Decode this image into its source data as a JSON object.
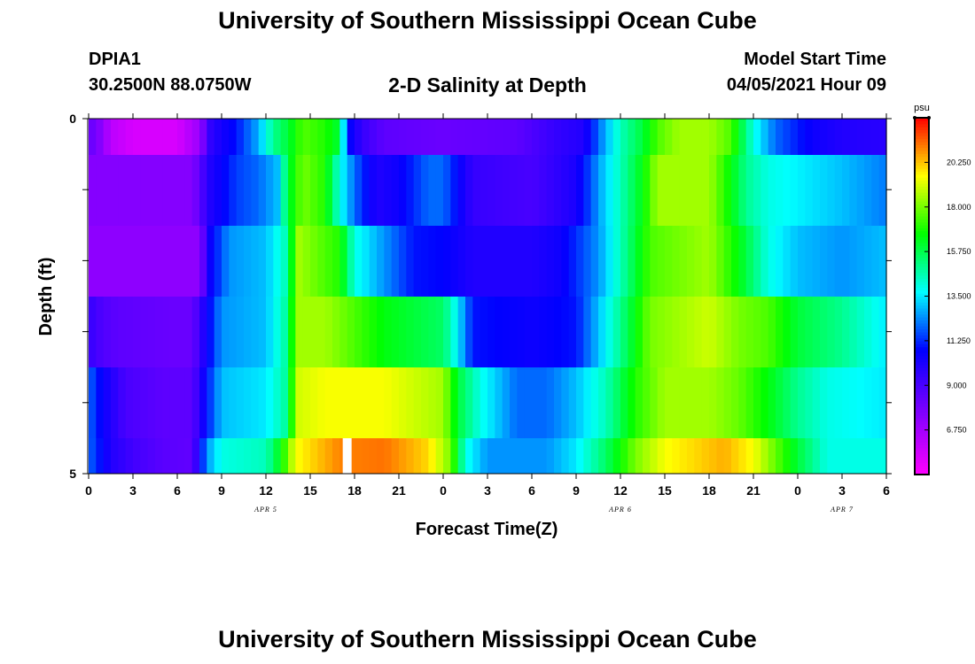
{
  "header": {
    "title": "University of Southern Mississippi Ocean Cube",
    "station_id": "DPIA1",
    "station_coords": "30.2500N  88.0750W",
    "plot_title": "2-D Salinity at Depth",
    "start_label": "Model Start Time",
    "start_value": "04/05/2021 Hour 09"
  },
  "footer": {
    "title": "University of Southern Mississippi Ocean Cube"
  },
  "chart_data": {
    "type": "heatmap",
    "title": "2-D Salinity at Depth",
    "xlabel": "Forecast Time(Z)",
    "ylabel": "Depth (ft)",
    "x_hours": [
      0,
      54
    ],
    "x_ticks": [
      {
        "h": 0,
        "label": "0"
      },
      {
        "h": 3,
        "label": "3"
      },
      {
        "h": 6,
        "label": "6"
      },
      {
        "h": 9,
        "label": "9"
      },
      {
        "h": 12,
        "label": "12"
      },
      {
        "h": 15,
        "label": "15"
      },
      {
        "h": 18,
        "label": "18"
      },
      {
        "h": 21,
        "label": "21"
      },
      {
        "h": 24,
        "label": "0"
      },
      {
        "h": 27,
        "label": "3"
      },
      {
        "h": 30,
        "label": "6"
      },
      {
        "h": 33,
        "label": "9"
      },
      {
        "h": 36,
        "label": "12"
      },
      {
        "h": 39,
        "label": "15"
      },
      {
        "h": 42,
        "label": "18"
      },
      {
        "h": 45,
        "label": "21"
      },
      {
        "h": 48,
        "label": "0"
      },
      {
        "h": 51,
        "label": "3"
      },
      {
        "h": 54,
        "label": "6"
      }
    ],
    "date_labels": [
      {
        "h": 12,
        "label": "APR 5"
      },
      {
        "h": 36,
        "label": "APR 6"
      },
      {
        "h": 51,
        "label": "APR 7"
      }
    ],
    "y_range": [
      0,
      5
    ],
    "y_tick_labels": [
      "0",
      "5"
    ],
    "colorbar": {
      "unit": "psu",
      "min": 4.5,
      "max": 22.5,
      "ticks": [
        "6.750",
        "9.000",
        "11.250",
        "13.500",
        "15.750",
        "18.000",
        "20.250"
      ],
      "tick_values": [
        6.75,
        9.0,
        11.25,
        13.5,
        15.75,
        18.0,
        20.25
      ]
    },
    "missing": [
      {
        "layer": 5,
        "h": [
          17.2,
          17.8
        ]
      }
    ],
    "layers": [
      {
        "depth_band": "0.0-0.5",
        "keys": [
          [
            0,
            8.2
          ],
          [
            0.5,
            8.0
          ],
          [
            1.5,
            6.2
          ],
          [
            3,
            5.5
          ],
          [
            6,
            5.5
          ],
          [
            7.5,
            7
          ],
          [
            8.3,
            9.8
          ],
          [
            10,
            11
          ],
          [
            11.5,
            12.8
          ],
          [
            12.5,
            15
          ],
          [
            13.5,
            16
          ],
          [
            14.5,
            17.6
          ],
          [
            16,
            17
          ],
          [
            17,
            16
          ],
          [
            17.5,
            11
          ],
          [
            18.5,
            9.5
          ],
          [
            20,
            8.5
          ],
          [
            24,
            8.2
          ],
          [
            29,
            8.5
          ],
          [
            31.5,
            9.5
          ],
          [
            33.5,
            10
          ],
          [
            34.8,
            12.5
          ],
          [
            36,
            14.5
          ],
          [
            37.5,
            16
          ],
          [
            38.5,
            17.5
          ],
          [
            40,
            18.5
          ],
          [
            42,
            18.5
          ],
          [
            43.5,
            17.5
          ],
          [
            45,
            14
          ],
          [
            46.5,
            12
          ],
          [
            49,
            10.5
          ],
          [
            51,
            10
          ],
          [
            54,
            9.8
          ]
        ]
      },
      {
        "depth_band": "0.5-1.5",
        "keys": [
          [
            0,
            7.5
          ],
          [
            7,
            7.5
          ],
          [
            8.2,
            10
          ],
          [
            10,
            11.5
          ],
          [
            11.5,
            12
          ],
          [
            12.8,
            13
          ],
          [
            13.5,
            16
          ],
          [
            14.5,
            18
          ],
          [
            16,
            17
          ],
          [
            17,
            14
          ],
          [
            18,
            12
          ],
          [
            19.5,
            10
          ],
          [
            21,
            10.5
          ],
          [
            23,
            12
          ],
          [
            24,
            12
          ],
          [
            26,
            9.5
          ],
          [
            30,
            9
          ],
          [
            33,
            10.2
          ],
          [
            34.8,
            13
          ],
          [
            36,
            14.5
          ],
          [
            37.5,
            16.5
          ],
          [
            38.5,
            18.5
          ],
          [
            42,
            18.5
          ],
          [
            43.5,
            16.5
          ],
          [
            44.5,
            15
          ],
          [
            46,
            14
          ],
          [
            48.5,
            13.5
          ],
          [
            51,
            13
          ],
          [
            54,
            12.2
          ]
        ]
      },
      {
        "depth_band": "1.5-2.5",
        "keys": [
          [
            0,
            7.3
          ],
          [
            7.5,
            7.3
          ],
          [
            8.2,
            10.5
          ],
          [
            9.5,
            12.5
          ],
          [
            12,
            13
          ],
          [
            13.3,
            14.5
          ],
          [
            14.2,
            18.5
          ],
          [
            16,
            17.5
          ],
          [
            17,
            17
          ],
          [
            18,
            14
          ],
          [
            20,
            12.5
          ],
          [
            22,
            11
          ],
          [
            24,
            10.8
          ],
          [
            26,
            10
          ],
          [
            30,
            10
          ],
          [
            32,
            10.5
          ],
          [
            34.5,
            12.5
          ],
          [
            36,
            14.5
          ],
          [
            38,
            17.5
          ],
          [
            42,
            18.5
          ],
          [
            44,
            16.5
          ],
          [
            46,
            14
          ],
          [
            48,
            13
          ],
          [
            51,
            12.5
          ],
          [
            54,
            13
          ]
        ]
      },
      {
        "depth_band": "2.5-3.5",
        "keys": [
          [
            0,
            9.5
          ],
          [
            1,
            8.8
          ],
          [
            2,
            8.5
          ],
          [
            6,
            8.2
          ],
          [
            7,
            8.2
          ],
          [
            8,
            10.5
          ],
          [
            9,
            12.5
          ],
          [
            12,
            13
          ],
          [
            13.5,
            15
          ],
          [
            14,
            18.5
          ],
          [
            16,
            18.5
          ],
          [
            18,
            17.5
          ],
          [
            20,
            16.5
          ],
          [
            22,
            16
          ],
          [
            24,
            15.5
          ],
          [
            25,
            13.5
          ],
          [
            26,
            11
          ],
          [
            30,
            10.5
          ],
          [
            33,
            11
          ],
          [
            34.5,
            13
          ],
          [
            36,
            15
          ],
          [
            38,
            18
          ],
          [
            42,
            19
          ],
          [
            44,
            18
          ],
          [
            46,
            17.5
          ],
          [
            48,
            16
          ],
          [
            51,
            15
          ],
          [
            54,
            13.5
          ]
        ]
      },
      {
        "depth_band": "3.5-4.5",
        "keys": [
          [
            0,
            12
          ],
          [
            1,
            10.5
          ],
          [
            2.5,
            9
          ],
          [
            5,
            8.5
          ],
          [
            7,
            8.5
          ],
          [
            8,
            11
          ],
          [
            9,
            13
          ],
          [
            12,
            13.5
          ],
          [
            13.5,
            15
          ],
          [
            14,
            19
          ],
          [
            16,
            19.5
          ],
          [
            20,
            19.5
          ],
          [
            24,
            18.5
          ],
          [
            25,
            16
          ],
          [
            26.5,
            14
          ],
          [
            29,
            12
          ],
          [
            31,
            12
          ],
          [
            33,
            13
          ],
          [
            35,
            14.5
          ],
          [
            37,
            17
          ],
          [
            39,
            18.5
          ],
          [
            42,
            18.5
          ],
          [
            44,
            17.8
          ],
          [
            46,
            16.5
          ],
          [
            48,
            15
          ],
          [
            50,
            14
          ],
          [
            54,
            13.5
          ]
        ]
      },
      {
        "depth_band": "4.5-5.0",
        "keys": [
          [
            0,
            12
          ],
          [
            1.5,
            10
          ],
          [
            3,
            9.2
          ],
          [
            5,
            8.6
          ],
          [
            7,
            8.4
          ],
          [
            8,
            12.5
          ],
          [
            9,
            14
          ],
          [
            12,
            14.5
          ],
          [
            13,
            16.5
          ],
          [
            14,
            19.5
          ],
          [
            16,
            20.5
          ],
          [
            17,
            21
          ],
          [
            20,
            21.2
          ],
          [
            23,
            20
          ],
          [
            24.5,
            18
          ],
          [
            25.5,
            14
          ],
          [
            27,
            12.5
          ],
          [
            31,
            12.5
          ],
          [
            33,
            13.5
          ],
          [
            35,
            15.5
          ],
          [
            37,
            18
          ],
          [
            39,
            19.5
          ],
          [
            43,
            20.5
          ],
          [
            45,
            19.5
          ],
          [
            48,
            16
          ],
          [
            50,
            14
          ],
          [
            54,
            14
          ]
        ]
      }
    ]
  }
}
